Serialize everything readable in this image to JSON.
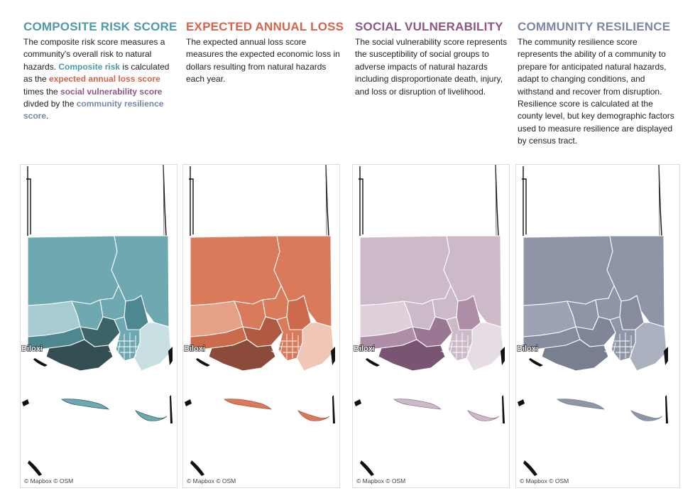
{
  "columns": [
    {
      "title": "COMPOSITE RISK SCORE",
      "title_color": "#4e9aa6",
      "segments": [
        {
          "text": "The composite risk score measures a community's overall risk to natural hazards. "
        },
        {
          "text": "Composite risk",
          "color": "#4e9aa6"
        },
        {
          "text": " is calculated as the "
        },
        {
          "text": "expected annual loss score",
          "color": "#d9634a"
        },
        {
          "text": " times the "
        },
        {
          "text": "social vulnerability score",
          "color": "#8c5787"
        },
        {
          "text": " divded by the "
        },
        {
          "text": "community resilience score",
          "color": "#7b87a4"
        },
        {
          "text": "."
        }
      ]
    },
    {
      "title": "EXPECTED ANNUAL LOSS",
      "title_color": "#d9634a",
      "segments": [
        {
          "text": "The expected annual loss score measures the expected economic loss in dollars resulting from natural hazards each year."
        }
      ]
    },
    {
      "title": "SOCIAL VULNERABILITY",
      "title_color": "#8c5787",
      "segments": [
        {
          "text": "The social vulnerability score represents the susceptibility of social groups to adverse impacts of natural hazards including disproportionate death, injury, and loss or disruption of livelihood."
        }
      ]
    },
    {
      "title": "COMMUNITY RESILIENCE",
      "title_color": "#7b87a4",
      "segments": [
        {
          "text": "The community resilience score represents the ability of a community to prepare for anticipated natural hazards, adapt to changing conditions, and withstand and recover from disruption. Resilience score is calculated at the county level, but key demographic factors used to measure resilience are displayed by census tract."
        }
      ]
    }
  ],
  "maps": [
    {
      "name": "composite-risk",
      "attribution": "© Mapbox © OSM",
      "city_label": "Biloxi",
      "colors": {
        "base": "#6ea8b1",
        "light": "#a6ccd2",
        "lighter": "#c9e0e3",
        "dark": "#4f8790",
        "darker": "#3c6468",
        "darkest": "#334f53"
      }
    },
    {
      "name": "expected-annual-loss",
      "attribution": "© Mapbox © OSM",
      "city_label": "Biloxi",
      "colors": {
        "base": "#d97a5b",
        "light": "#e5a185",
        "lighter": "#f0c7b4",
        "dark": "#cc6a4c",
        "darker": "#b05a42",
        "darkest": "#8c4a3a"
      }
    },
    {
      "name": "social-vulnerability",
      "attribution": "© Mapbox © OSM",
      "city_label": "Biloxi",
      "colors": {
        "base": "#cdbac8",
        "light": "#ddd0da",
        "lighter": "#e6dce3",
        "dark": "#ad8ea6",
        "darker": "#9a7893",
        "darkest": "#7a5573"
      }
    },
    {
      "name": "community-resilience",
      "attribution": "© Mapbox © OSM",
      "city_label": "Biloxi",
      "colors": {
        "base": "#8e95a6",
        "light": "#9ca3b2",
        "lighter": "#aab0bd",
        "dark": "#868c9d",
        "darker": "#7f8698",
        "darkest": "#787f91"
      }
    }
  ]
}
